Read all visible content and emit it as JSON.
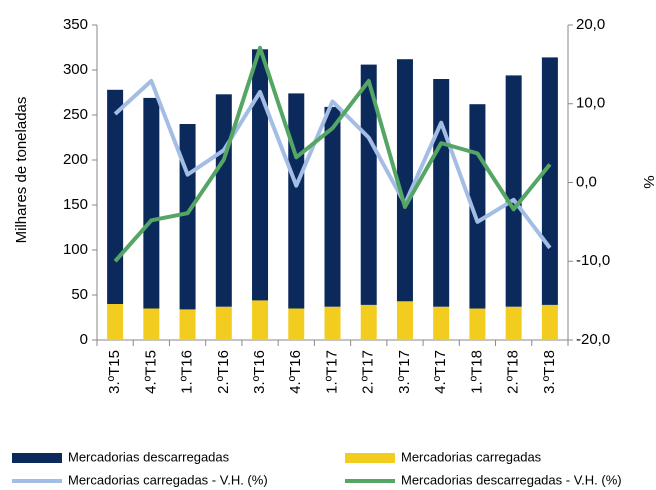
{
  "chart_data": {
    "type": "bar-line",
    "categories": [
      "3.ºT15",
      "4.ºT15",
      "1.ºT16",
      "2.ºT16",
      "3.ºT16",
      "4.ºT16",
      "1.ºT17",
      "2.ºT17",
      "3.ºT17",
      "4.ºT17",
      "1.ºT18",
      "2.ºT18",
      "3.ºT18"
    ],
    "ylabel": "Milhares de toneladas",
    "y2label": "%",
    "ylim": [
      0,
      350
    ],
    "yticks": [
      0,
      50,
      100,
      150,
      200,
      250,
      300,
      350
    ],
    "y2lim": [
      -20,
      20
    ],
    "y2ticks": [
      {
        "value": -20,
        "label": "-20,0"
      },
      {
        "value": -10,
        "label": "-10,0"
      },
      {
        "value": 0,
        "label": "0,0"
      },
      {
        "value": 10,
        "label": "10,0"
      },
      {
        "value": 20,
        "label": "20,0"
      }
    ],
    "series": [
      {
        "name": "Mercadorias descarregadas",
        "color": "#0b2a5b",
        "kind": "bar",
        "stack": 1,
        "values": [
          238,
          234,
          206,
          236,
          279,
          239,
          222,
          267,
          269,
          253,
          227,
          257,
          275
        ]
      },
      {
        "name": "Mercadorias carregadas",
        "color": "#f2cd1f",
        "kind": "bar",
        "stack": 0,
        "values": [
          40,
          35,
          34,
          37,
          44,
          35,
          37,
          39,
          43,
          37,
          35,
          37,
          39
        ]
      },
      {
        "name": "Mercadorias carregadas - V.H. (%)",
        "color": "#a3bde4",
        "kind": "line",
        "axis": "y2",
        "values": [
          8.7,
          12.9,
          1.0,
          4.1,
          11.5,
          -0.4,
          10.3,
          5.7,
          -2.7,
          7.6,
          -5.0,
          -2.2,
          -8.3
        ]
      },
      {
        "name": "Mercadorias descarregadas - V.H. (%)",
        "color": "#55a565",
        "kind": "line",
        "axis": "y2",
        "values": [
          -10.0,
          -4.8,
          -3.9,
          2.9,
          17.1,
          3.2,
          6.9,
          12.9,
          -3.1,
          5.0,
          3.7,
          -3.4,
          2.3
        ]
      }
    ]
  }
}
